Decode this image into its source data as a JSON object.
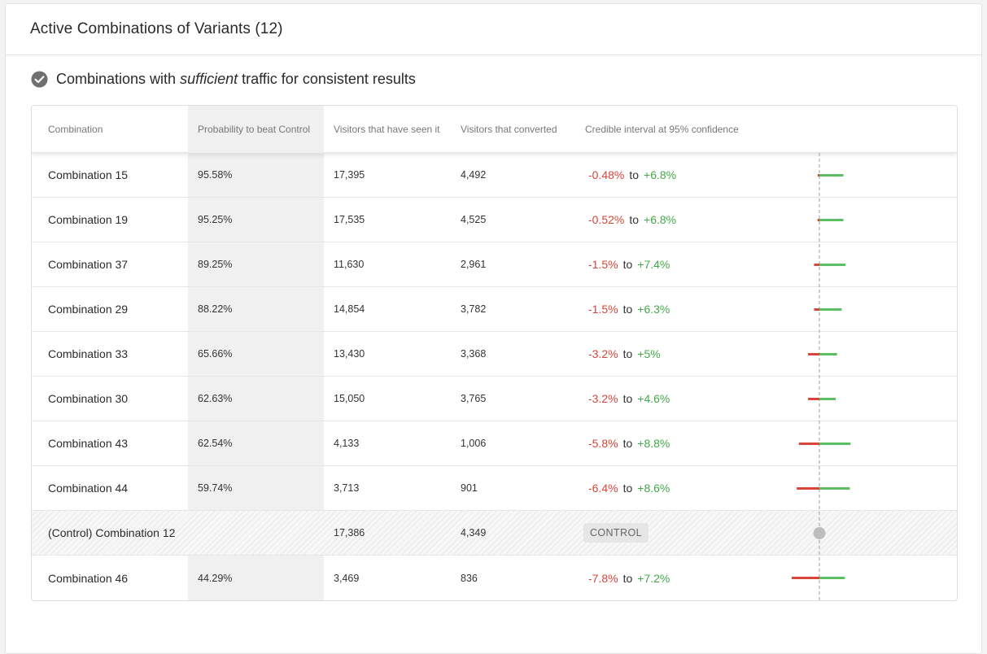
{
  "header": {
    "title": "Active Combinations of Variants (12)"
  },
  "section": {
    "prefix": "Combinations with ",
    "emphasis": "sufficient",
    "suffix": " traffic for consistent results"
  },
  "table": {
    "columns": [
      "Combination",
      "Probability to beat Control",
      "Visitors that have seen it",
      "Visitors that converted",
      "Credible interval at 95% confidence"
    ],
    "to_label": "to",
    "control_badge": "CONTROL",
    "rows": [
      {
        "name": "Combination 15",
        "prob": "95.58%",
        "seen": "17,395",
        "converted": "4,492",
        "low": "-0.48%",
        "high": "+6.8%",
        "low_val": -0.48,
        "high_val": 6.8,
        "control": false
      },
      {
        "name": "Combination 19",
        "prob": "95.25%",
        "seen": "17,535",
        "converted": "4,525",
        "low": "-0.52%",
        "high": "+6.8%",
        "low_val": -0.52,
        "high_val": 6.8,
        "control": false
      },
      {
        "name": "Combination 37",
        "prob": "89.25%",
        "seen": "11,630",
        "converted": "2,961",
        "low": "-1.5%",
        "high": "+7.4%",
        "low_val": -1.5,
        "high_val": 7.4,
        "control": false
      },
      {
        "name": "Combination 29",
        "prob": "88.22%",
        "seen": "14,854",
        "converted": "3,782",
        "low": "-1.5%",
        "high": "+6.3%",
        "low_val": -1.5,
        "high_val": 6.3,
        "control": false
      },
      {
        "name": "Combination 33",
        "prob": "65.66%",
        "seen": "13,430",
        "converted": "3,368",
        "low": "-3.2%",
        "high": "+5%",
        "low_val": -3.2,
        "high_val": 5,
        "control": false
      },
      {
        "name": "Combination 30",
        "prob": "62.63%",
        "seen": "15,050",
        "converted": "3,765",
        "low": "-3.2%",
        "high": "+4.6%",
        "low_val": -3.2,
        "high_val": 4.6,
        "control": false
      },
      {
        "name": "Combination 43",
        "prob": "62.54%",
        "seen": "4,133",
        "converted": "1,006",
        "low": "-5.8%",
        "high": "+8.8%",
        "low_val": -5.8,
        "high_val": 8.8,
        "control": false
      },
      {
        "name": "Combination 44",
        "prob": "59.74%",
        "seen": "3,713",
        "converted": "901",
        "low": "-6.4%",
        "high": "+8.6%",
        "low_val": -6.4,
        "high_val": 8.6,
        "control": false
      },
      {
        "name": "(Control) Combination 12",
        "prob": "",
        "seen": "17,386",
        "converted": "4,349",
        "low": "",
        "high": "",
        "low_val": 0,
        "high_val": 0,
        "control": true
      },
      {
        "name": "Combination 46",
        "prob": "44.29%",
        "seen": "3,469",
        "converted": "836",
        "low": "-7.8%",
        "high": "+7.2%",
        "low_val": -7.8,
        "high_val": 7.2,
        "control": false
      }
    ]
  },
  "colors": {
    "negative": "#d9453a",
    "positive": "#5cbf64",
    "control_dot": "#bdbdbd",
    "zero_line": "#9e9e9e"
  }
}
